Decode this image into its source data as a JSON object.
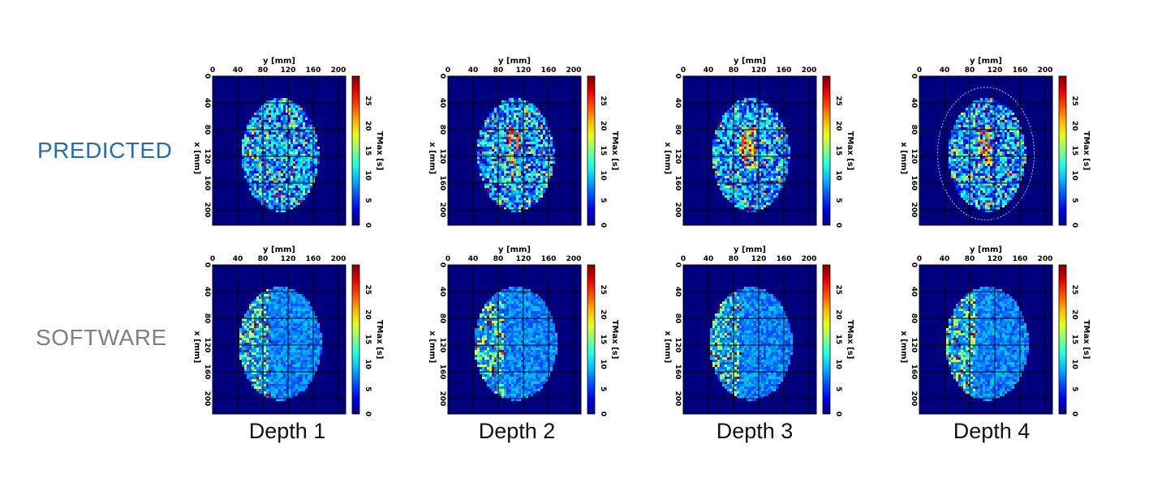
{
  "rows": [
    {
      "label": "PREDICTED",
      "color": "#1f6fb2"
    },
    {
      "label": "SOFTWARE",
      "color": "#7f7f7f"
    }
  ],
  "columns": [
    "Depth 1",
    "Depth 2",
    "Depth 3",
    "Depth 4"
  ],
  "axes": {
    "x_title": "y [mm]",
    "y_title": "x [mm]",
    "x_ticks": [
      "0",
      "40",
      "80",
      "120",
      "160",
      "200"
    ],
    "y_ticks": [
      "0",
      "40",
      "80",
      "120",
      "160",
      "200"
    ],
    "colorbar_title": "TMax [s]",
    "colorbar_ticks": [
      "0",
      "5",
      "10",
      "15",
      "20",
      "25"
    ],
    "colorbar_range": [
      0,
      30
    ]
  },
  "colors": {
    "background_map": "#00007f",
    "colormap": "jet"
  }
}
